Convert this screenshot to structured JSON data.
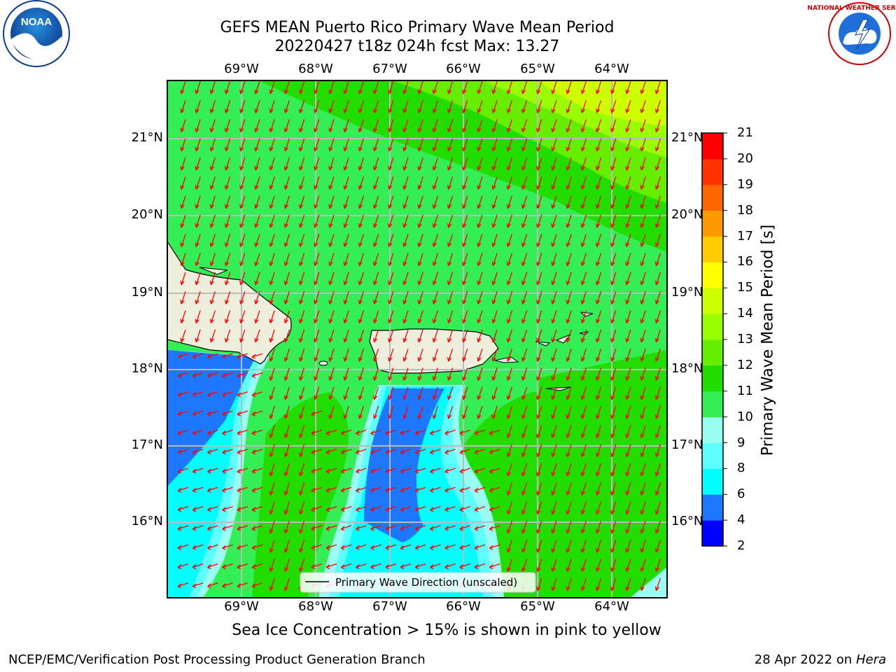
{
  "title": {
    "line1": "GEFS MEAN Puerto Rico Primary Wave Mean Period",
    "line2": "20220427 t18z 024h fcst   Max: 13.27"
  },
  "map": {
    "longitude_labels": [
      "69°W",
      "68°W",
      "67°W",
      "66°W",
      "65°W",
      "64°W"
    ],
    "latitude_labels": [
      "21°N",
      "20°N",
      "19°N",
      "18°N",
      "17°N",
      "16°N"
    ],
    "legend_label": "Primary Wave Direction (unscaled)",
    "arrow_color": "#ff0000"
  },
  "colorbar": {
    "label": "Primary Wave Mean Period [s]",
    "ticks": [
      "21",
      "20",
      "19",
      "18",
      "17",
      "16",
      "15",
      "14",
      "13",
      "12",
      "11",
      "10",
      "9",
      "8",
      "6",
      "4",
      "2"
    ],
    "colors": [
      "#0000ff",
      "#1e78ff",
      "#00ffff",
      "#5effff",
      "#99fff2",
      "#33ee55",
      "#22dd00",
      "#66ee00",
      "#99ff00",
      "#ccff00",
      "#ffff00",
      "#ffcc00",
      "#ff9900",
      "#ff6600",
      "#ff3300",
      "#ff0000"
    ]
  },
  "note": "Sea Ice Concentration > 15% is shown in pink to yellow",
  "footer": {
    "left": "NCEP/EMC/Verification Post Processing Product Generation Branch",
    "right_date": "28 Apr 2022 on ",
    "right_host": "Hera"
  },
  "logos": {
    "noaa": "NOAA",
    "nws": "NATIONAL WEATHER SERVICE"
  }
}
